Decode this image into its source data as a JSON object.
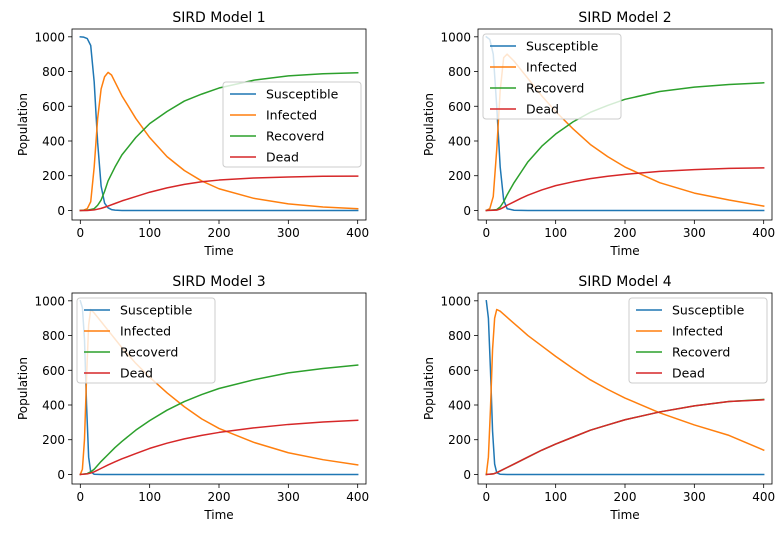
{
  "colors": {
    "Susceptible": "#1f77b4",
    "Infected": "#ff7f0e",
    "Recoverd": "#2ca02c",
    "Dead": "#d62728"
  },
  "chart_data": [
    {
      "type": "line",
      "title": "SIRD Model 1",
      "xlabel": "Time",
      "ylabel": "Population",
      "xlim": [
        -12,
        412
      ],
      "ylim": [
        -55,
        1045
      ],
      "xticks": [
        0,
        100,
        200,
        300,
        400
      ],
      "yticks": [
        0,
        200,
        400,
        600,
        800,
        1000
      ],
      "legend_position": "center-right",
      "grid": false,
      "series": [
        {
          "name": "Susceptible",
          "x": [
            0,
            5,
            10,
            15,
            20,
            25,
            30,
            35,
            40,
            45,
            50,
            60,
            80,
            100,
            200,
            300,
            400
          ],
          "values": [
            1000,
            998,
            990,
            950,
            740,
            390,
            140,
            42,
            15,
            5,
            2,
            0,
            0,
            0,
            0,
            0,
            0
          ]
        },
        {
          "name": "Infected",
          "x": [
            0,
            5,
            10,
            15,
            20,
            25,
            30,
            35,
            40,
            45,
            50,
            60,
            80,
            100,
            125,
            150,
            175,
            200,
            250,
            300,
            350,
            400
          ],
          "values": [
            0,
            2,
            10,
            50,
            250,
            530,
            700,
            770,
            795,
            780,
            740,
            660,
            530,
            420,
            310,
            230,
            170,
            125,
            70,
            38,
            20,
            10
          ]
        },
        {
          "name": "Recoverd",
          "x": [
            0,
            10,
            20,
            25,
            30,
            35,
            40,
            50,
            60,
            80,
            100,
            125,
            150,
            175,
            200,
            250,
            300,
            350,
            400
          ],
          "values": [
            0,
            1,
            10,
            30,
            60,
            110,
            170,
            250,
            320,
            420,
            500,
            570,
            630,
            670,
            705,
            750,
            775,
            787,
            793
          ]
        },
        {
          "name": "Dead",
          "x": [
            0,
            10,
            20,
            30,
            40,
            50,
            60,
            80,
            100,
            125,
            150,
            175,
            200,
            250,
            300,
            350,
            400
          ],
          "values": [
            0,
            0,
            3,
            12,
            25,
            40,
            55,
            80,
            105,
            130,
            150,
            165,
            175,
            187,
            193,
            197,
            198
          ]
        }
      ]
    },
    {
      "type": "line",
      "title": "SIRD Model 2",
      "xlabel": "Time",
      "ylabel": "Population",
      "xlim": [
        -12,
        412
      ],
      "ylim": [
        -55,
        1045
      ],
      "xticks": [
        0,
        100,
        200,
        300,
        400
      ],
      "yticks": [
        0,
        200,
        400,
        600,
        800,
        1000
      ],
      "legend_position": "upper-left",
      "grid": false,
      "series": [
        {
          "name": "Susceptible",
          "x": [
            0,
            5,
            10,
            15,
            20,
            25,
            30,
            40,
            60,
            100,
            200,
            300,
            400
          ],
          "values": [
            1000,
            985,
            900,
            600,
            250,
            60,
            10,
            1,
            0,
            0,
            0,
            0,
            0
          ]
        },
        {
          "name": "Infected",
          "x": [
            0,
            5,
            10,
            15,
            20,
            25,
            30,
            40,
            50,
            60,
            80,
            100,
            125,
            150,
            175,
            200,
            250,
            300,
            350,
            400
          ],
          "values": [
            0,
            10,
            80,
            350,
            690,
            880,
            900,
            860,
            810,
            760,
            660,
            570,
            470,
            380,
            310,
            250,
            160,
            100,
            60,
            25
          ]
        },
        {
          "name": "Recoverd",
          "x": [
            0,
            15,
            20,
            25,
            30,
            40,
            50,
            60,
            80,
            100,
            125,
            150,
            175,
            200,
            250,
            300,
            350,
            400
          ],
          "values": [
            0,
            5,
            20,
            50,
            90,
            160,
            220,
            280,
            370,
            440,
            510,
            565,
            605,
            640,
            685,
            710,
            725,
            735
          ]
        },
        {
          "name": "Dead",
          "x": [
            0,
            15,
            20,
            25,
            30,
            40,
            50,
            60,
            80,
            100,
            125,
            150,
            175,
            200,
            250,
            300,
            350,
            400
          ],
          "values": [
            0,
            2,
            8,
            18,
            30,
            50,
            70,
            88,
            118,
            143,
            165,
            183,
            197,
            208,
            225,
            235,
            242,
            245
          ]
        }
      ]
    },
    {
      "type": "line",
      "title": "SIRD Model 3",
      "xlabel": "Time",
      "ylabel": "Population",
      "xlim": [
        -12,
        412
      ],
      "ylim": [
        -55,
        1045
      ],
      "xticks": [
        0,
        100,
        200,
        300,
        400
      ],
      "yticks": [
        0,
        200,
        400,
        600,
        800,
        1000
      ],
      "legend_position": "upper-left",
      "grid": false,
      "series": [
        {
          "name": "Susceptible",
          "x": [
            0,
            3,
            6,
            9,
            12,
            15,
            20,
            30,
            100,
            200,
            300,
            400
          ],
          "values": [
            1000,
            960,
            780,
            400,
            100,
            15,
            1,
            0,
            0,
            0,
            0,
            0
          ]
        },
        {
          "name": "Infected",
          "x": [
            0,
            3,
            6,
            9,
            12,
            15,
            20,
            30,
            40,
            50,
            60,
            80,
            100,
            125,
            150,
            175,
            200,
            250,
            300,
            350,
            400
          ],
          "values": [
            0,
            30,
            200,
            560,
            860,
            950,
            930,
            880,
            830,
            780,
            730,
            640,
            560,
            470,
            390,
            320,
            265,
            185,
            125,
            85,
            55
          ]
        },
        {
          "name": "Recoverd",
          "x": [
            0,
            10,
            15,
            20,
            30,
            40,
            50,
            60,
            80,
            100,
            125,
            150,
            175,
            200,
            250,
            300,
            350,
            400
          ],
          "values": [
            0,
            5,
            15,
            30,
            75,
            115,
            155,
            190,
            255,
            310,
            370,
            420,
            460,
            495,
            545,
            585,
            610,
            630
          ]
        },
        {
          "name": "Dead",
          "x": [
            0,
            10,
            15,
            20,
            30,
            40,
            50,
            60,
            80,
            100,
            125,
            150,
            175,
            200,
            250,
            300,
            350,
            400
          ],
          "values": [
            0,
            3,
            8,
            15,
            35,
            55,
            73,
            90,
            120,
            150,
            180,
            205,
            225,
            242,
            268,
            288,
            302,
            312
          ]
        }
      ]
    },
    {
      "type": "line",
      "title": "SIRD Model 4",
      "xlabel": "Time",
      "ylabel": "Population",
      "xlim": [
        -12,
        412
      ],
      "ylim": [
        -55,
        1045
      ],
      "xticks": [
        0,
        100,
        200,
        300,
        400
      ],
      "yticks": [
        0,
        200,
        400,
        600,
        800,
        1000
      ],
      "legend_position": "upper-right",
      "grid": false,
      "series": [
        {
          "name": "Susceptible",
          "x": [
            0,
            3,
            6,
            9,
            12,
            15,
            20,
            30,
            100,
            200,
            300,
            400
          ],
          "values": [
            1000,
            900,
            600,
            250,
            60,
            10,
            1,
            0,
            0,
            0,
            0,
            0
          ]
        },
        {
          "name": "Infected",
          "x": [
            0,
            3,
            6,
            9,
            12,
            15,
            20,
            30,
            40,
            50,
            60,
            80,
            100,
            125,
            150,
            175,
            200,
            250,
            300,
            350,
            400
          ],
          "values": [
            0,
            100,
            380,
            720,
            900,
            950,
            940,
            905,
            870,
            835,
            800,
            740,
            680,
            610,
            545,
            490,
            440,
            355,
            285,
            225,
            140
          ]
        },
        {
          "name": "Recoverd",
          "x": [
            0,
            10,
            15,
            20,
            30,
            40,
            50,
            60,
            80,
            100,
            125,
            150,
            175,
            200,
            250,
            300,
            350,
            400
          ],
          "values": [
            0,
            3,
            10,
            20,
            40,
            60,
            80,
            100,
            140,
            175,
            215,
            255,
            285,
            315,
            360,
            395,
            420,
            432
          ]
        },
        {
          "name": "Dead",
          "x": [
            0,
            10,
            15,
            20,
            30,
            40,
            50,
            60,
            80,
            100,
            125,
            150,
            175,
            200,
            250,
            300,
            350,
            400
          ],
          "values": [
            0,
            3,
            10,
            20,
            40,
            60,
            80,
            100,
            140,
            175,
            215,
            255,
            285,
            315,
            360,
            395,
            420,
            430
          ]
        }
      ]
    }
  ]
}
